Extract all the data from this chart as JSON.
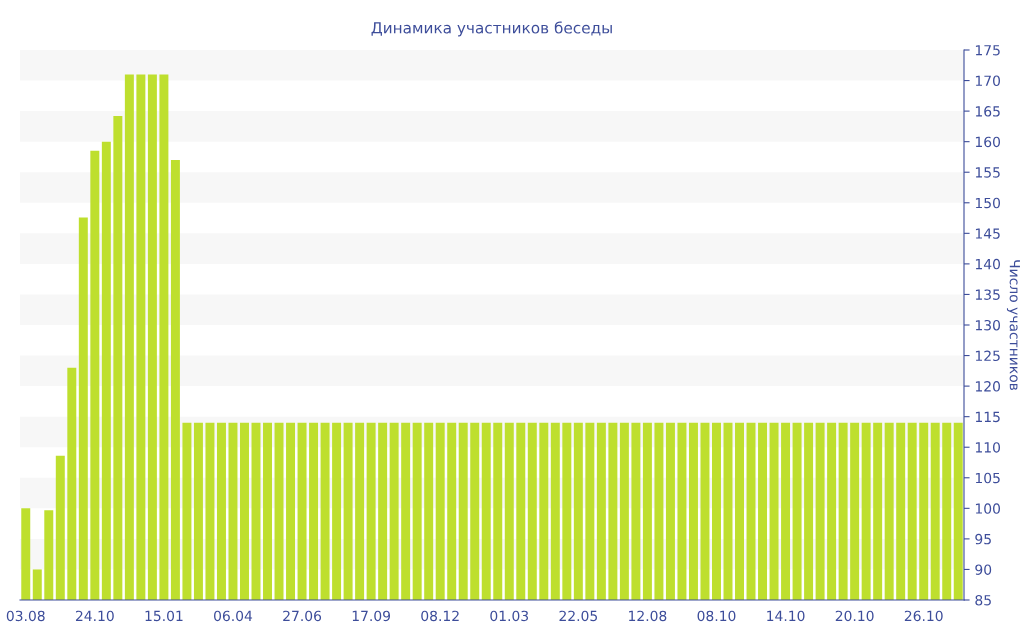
{
  "chart_data": {
    "type": "bar",
    "title": "Динамика участников беседы",
    "ylabel": "Число участников",
    "categories": [
      "03.08",
      null,
      null,
      null,
      null,
      null,
      "24.10",
      null,
      null,
      null,
      null,
      null,
      "15.01",
      null,
      null,
      null,
      null,
      null,
      "06.04",
      null,
      null,
      null,
      null,
      null,
      "27.06",
      null,
      null,
      null,
      null,
      null,
      "17.09",
      null,
      null,
      null,
      null,
      null,
      "08.12",
      null,
      null,
      null,
      null,
      null,
      "01.03",
      null,
      null,
      null,
      null,
      null,
      "22.05",
      null,
      null,
      null,
      null,
      null,
      "12.08",
      null,
      null,
      null,
      null,
      null,
      "08.10",
      null,
      null,
      null,
      null,
      null,
      "14.10",
      null,
      null,
      null,
      null,
      null,
      "20.10",
      null,
      null,
      null,
      null,
      null,
      "26.10",
      null,
      null,
      null
    ],
    "values": [
      100,
      90,
      99.7,
      108.6,
      123,
      147.6,
      158.5,
      160,
      164.2,
      171,
      171,
      171,
      171,
      157,
      114,
      114,
      114,
      114,
      114,
      114,
      114,
      114,
      114,
      114,
      114,
      114,
      114,
      114,
      114,
      114,
      114,
      114,
      114,
      114,
      114,
      114,
      114,
      114,
      114,
      114,
      114,
      114,
      114,
      114,
      114,
      114,
      114,
      114,
      114,
      114,
      114,
      114,
      114,
      114,
      114,
      114,
      114,
      114,
      114,
      114,
      114,
      114,
      114,
      114,
      114,
      114,
      114,
      114,
      114,
      114,
      114,
      114,
      114,
      114,
      114,
      114,
      114,
      114,
      114,
      114,
      114,
      114
    ],
    "color": "#bedf2e",
    "ylim": [
      85,
      175
    ],
    "yticks": [
      85,
      90,
      95,
      100,
      105,
      110,
      115,
      120,
      125,
      130,
      135,
      140,
      145,
      150,
      155,
      160,
      165,
      170,
      175
    ],
    "bands": [
      {
        "axis": "y",
        "from": 90,
        "to": 95,
        "color": "#f7f7f7"
      },
      {
        "axis": "y",
        "from": 100,
        "to": 105,
        "color": "#f7f7f7"
      },
      {
        "axis": "y",
        "from": 110,
        "to": 115,
        "color": "#f7f7f7"
      },
      {
        "axis": "y",
        "from": 120,
        "to": 125,
        "color": "#f7f7f7"
      },
      {
        "axis": "y",
        "from": 130,
        "to": 135,
        "color": "#f7f7f7"
      },
      {
        "axis": "y",
        "from": 140,
        "to": 145,
        "color": "#f7f7f7"
      },
      {
        "axis": "y",
        "from": 150,
        "to": 155,
        "color": "#f7f7f7"
      },
      {
        "axis": "y",
        "from": 160,
        "to": 165,
        "color": "#f7f7f7"
      },
      {
        "axis": "y",
        "from": 170,
        "to": 175,
        "color": "#f7f7f7"
      }
    ],
    "legend": false
  }
}
